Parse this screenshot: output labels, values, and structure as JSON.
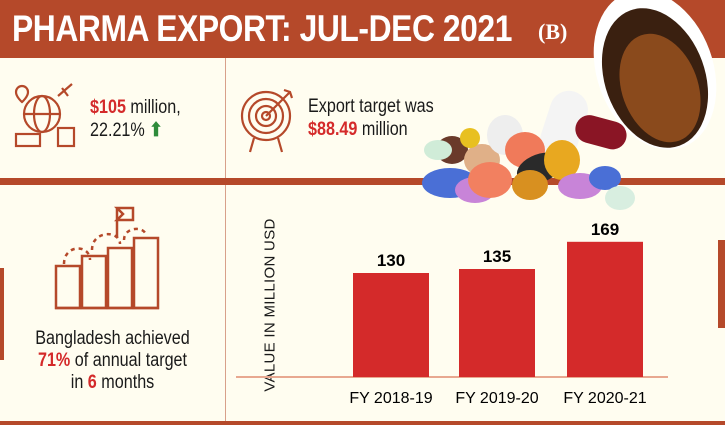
{
  "header": {
    "title": "PHARMA EXPORT: JUL-DEC 2021",
    "logo": "(B)"
  },
  "stats": {
    "export_value": "$105",
    "export_unit": " million,",
    "growth": "22.21%",
    "growth_icon": "arrow-up-icon",
    "growth_color": "#2e8b3a",
    "target_prefix": "Export target was",
    "target_value": "$88.49",
    "target_unit": " million"
  },
  "achievement": {
    "line1": "Bangladesh achieved",
    "pct": "71%",
    "line2_rest": " of annual target",
    "line3_pre": "in ",
    "months": "6",
    "line3_post": " months"
  },
  "colors": {
    "brand": "#b5492a",
    "highlight": "#d42a2a",
    "bar": "#d42a2a",
    "background": "#fffdf0"
  },
  "chart_data": {
    "type": "bar",
    "categories": [
      "FY 2018-19",
      "FY 2019-20",
      "FY 2020-21"
    ],
    "values": [
      130,
      135,
      169
    ],
    "data_labels": [
      "130",
      "135",
      "169"
    ],
    "ylabel": "VALUE IN MILLION USD",
    "xlabel": "",
    "grid": false
  }
}
